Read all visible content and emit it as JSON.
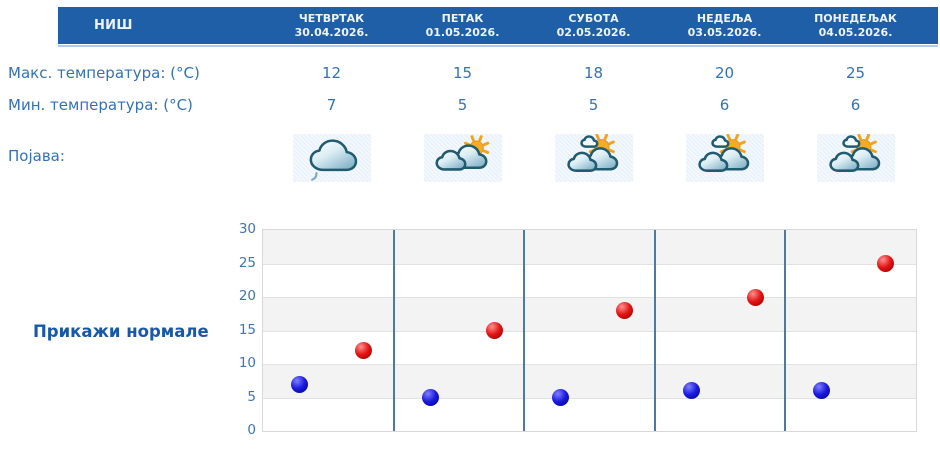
{
  "header": {
    "city": "НИШ",
    "days": [
      {
        "name": "ЧЕТВРТАК",
        "date": "30.04.2026."
      },
      {
        "name": "ПЕТАК",
        "date": "01.05.2026."
      },
      {
        "name": "СУБОТА",
        "date": "02.05.2026."
      },
      {
        "name": "НЕДЕЉА",
        "date": "03.05.2026."
      },
      {
        "name": "ПОНЕДЕЉАК",
        "date": "04.05.2026."
      }
    ]
  },
  "rows": {
    "max_label": "Макс. температура: (°C)",
    "max_values": [
      12,
      15,
      18,
      20,
      25
    ],
    "min_label": "Мин. температура: (°C)",
    "min_values": [
      7,
      5,
      5,
      6,
      6
    ],
    "pojava_label": "Појава:",
    "icons": [
      "overcast-drizzle-icon",
      "mostly-cloudy-sun-icon",
      "partly-sunny-icon",
      "partly-sunny-icon",
      "partly-sunny-icon"
    ]
  },
  "normals_link": "Прикажи нормале",
  "colors": {
    "header_bg": "#1e5fa8",
    "header_underline": "#aecbe9",
    "text_blue": "#3273b5",
    "link_blue": "#1858a8",
    "max_dot": "#cc0000",
    "min_dot": "#0000cc",
    "column_separator": "#4a7aa5",
    "band_gray": "#f3f3f3"
  },
  "chart_data": {
    "type": "scatter",
    "categories": [
      "ЧЕТВРТАК 30.04.2026.",
      "ПЕТАК 01.05.2026.",
      "СУБОТА 02.05.2026.",
      "НЕДЕЉА 03.05.2026.",
      "ПОНЕДЕЉАК 04.05.2026."
    ],
    "series": [
      {
        "name": "Макс. температура (°C)",
        "color": "#cc0000",
        "values": [
          12,
          15,
          18,
          20,
          25
        ]
      },
      {
        "name": "Мин. температура (°C)",
        "color": "#0000cc",
        "values": [
          7,
          5,
          5,
          6,
          6
        ]
      }
    ],
    "ylim": [
      0,
      30
    ],
    "ytick_interval": 5,
    "yticks": [
      0,
      5,
      10,
      15,
      20,
      25,
      30
    ],
    "grid": true,
    "legend_position": "none",
    "xlabel": "",
    "ylabel": ""
  }
}
